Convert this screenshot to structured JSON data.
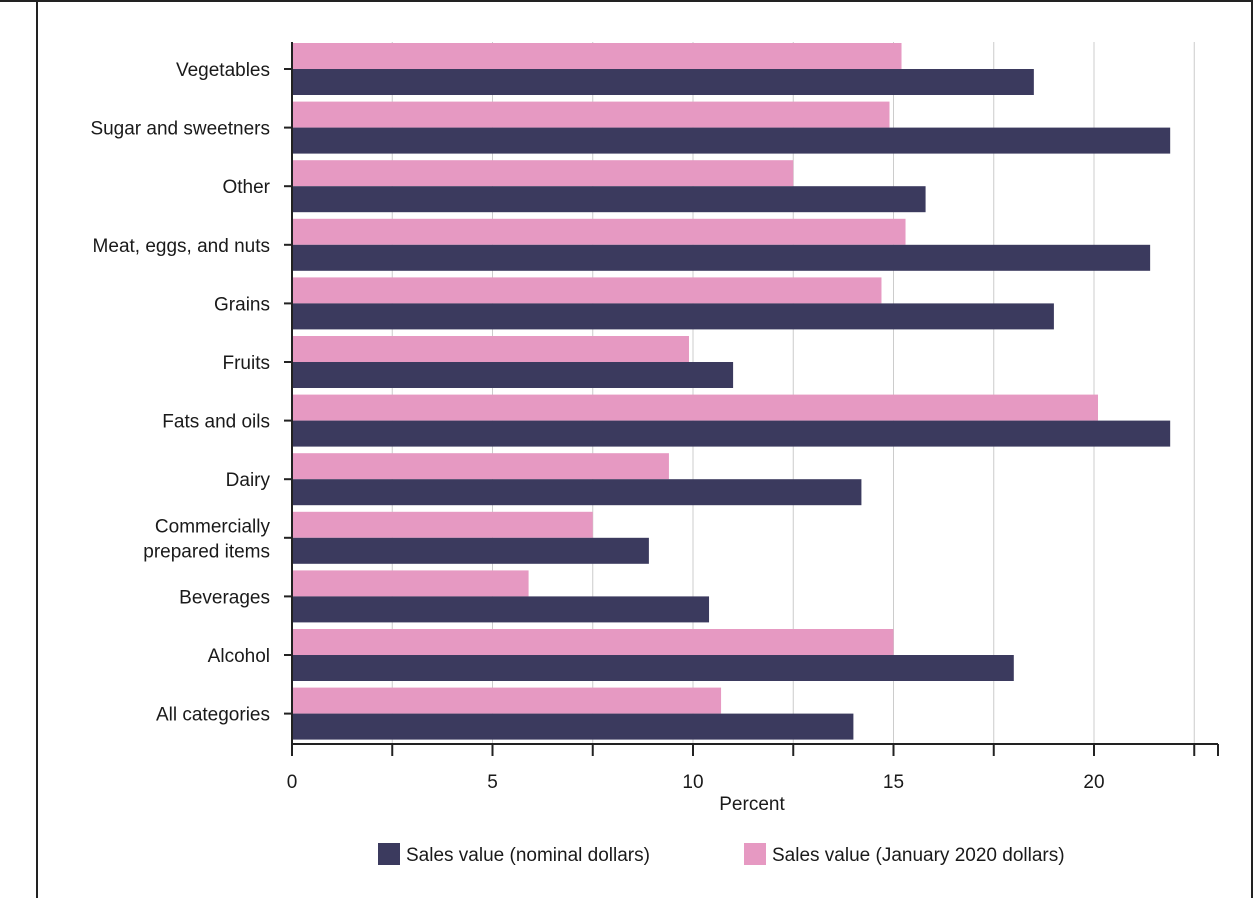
{
  "chart_data": {
    "type": "bar",
    "orientation": "horizontal",
    "title": "",
    "xlabel": "Percent",
    "ylabel": "",
    "xlim": [
      0,
      23
    ],
    "x_ticks": [
      0,
      5,
      10,
      15,
      20
    ],
    "grid": "vertical",
    "legend_position": "bottom",
    "categories": [
      "Vegetables",
      "Sugar and sweetners",
      "Other",
      "Meat, eggs, and nuts",
      "Grains",
      "Fruits",
      "Fats and oils",
      "Dairy",
      "Commercially prepared items",
      "Beverages",
      "Alcohol",
      "All categories"
    ],
    "category_lines": [
      [
        "Vegetables"
      ],
      [
        "Sugar and sweetners"
      ],
      [
        "Other"
      ],
      [
        "Meat, eggs, and nuts"
      ],
      [
        "Grains"
      ],
      [
        "Fruits"
      ],
      [
        "Fats and oils"
      ],
      [
        "Dairy"
      ],
      [
        "Commercially",
        "prepared items"
      ],
      [
        "Beverages"
      ],
      [
        "Alcohol"
      ],
      [
        "All categories"
      ]
    ],
    "series": [
      {
        "name": "Sales value (January 2020 dollars)",
        "color": "#e699c2",
        "values": [
          15.2,
          14.9,
          12.5,
          15.3,
          14.7,
          9.9,
          20.1,
          9.4,
          7.5,
          5.9,
          15.0,
          10.7
        ]
      },
      {
        "name": "Sales value (nominal dollars)",
        "color": "#3b3a5e",
        "values": [
          18.5,
          21.9,
          15.8,
          21.4,
          19.0,
          11.0,
          21.9,
          14.2,
          8.9,
          10.4,
          18.0,
          14.0
        ]
      }
    ],
    "legend_order": [
      {
        "name": "Sales value (nominal dollars)",
        "color": "#3b3a5e"
      },
      {
        "name": "Sales value (January 2020 dollars)",
        "color": "#e699c2"
      }
    ],
    "colors": {
      "grid": "#cccccc",
      "axis": "#222222"
    }
  }
}
